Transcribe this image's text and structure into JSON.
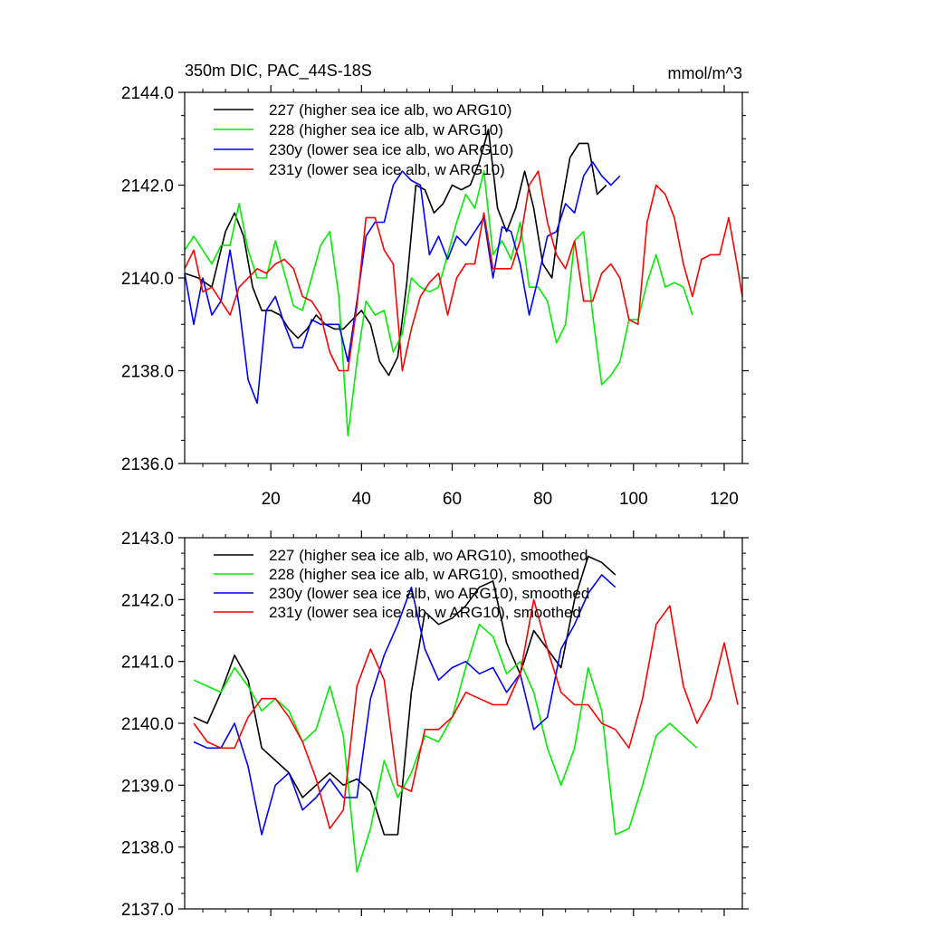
{
  "chart_data": [
    {
      "type": "line",
      "title": "350m DIC, PAC_44S-18S",
      "units": "mmol/m^3",
      "xlim": [
        1,
        124
      ],
      "ylim": [
        2136.0,
        2144.0
      ],
      "xticks": [
        20,
        40,
        60,
        80,
        100,
        120
      ],
      "xtick_labels": [
        "20",
        "40",
        "60",
        "80",
        "100",
        "120"
      ],
      "yticks": [
        2136,
        2138,
        2140,
        2142,
        2144
      ],
      "ytick_labels": [
        "2136.0",
        "2138.0",
        "2140.0",
        "2142.0",
        "2144.0"
      ],
      "legend_position": "top-left",
      "series": [
        {
          "name": "227 (higher sea ice alb, wo ARG10)",
          "color": "#000000",
          "x": [
            1,
            4,
            7,
            10,
            12,
            14,
            16,
            18,
            20,
            22,
            24,
            26,
            28,
            30,
            32,
            34,
            36,
            38,
            40,
            42,
            44,
            46,
            48,
            50,
            52,
            54,
            56,
            58,
            60,
            62,
            64,
            66,
            68,
            70,
            72,
            74,
            76,
            78,
            80,
            82,
            84,
            86,
            88,
            90,
            92,
            94
          ],
          "values": [
            2140.1,
            2140.0,
            2139.8,
            2141.0,
            2141.4,
            2140.9,
            2139.8,
            2139.3,
            2139.3,
            2139.2,
            2138.9,
            2138.7,
            2138.9,
            2139.2,
            2139.0,
            2138.9,
            2138.9,
            2139.1,
            2139.3,
            2139.0,
            2138.2,
            2137.9,
            2138.3,
            2139.9,
            2142.0,
            2141.9,
            2141.4,
            2141.6,
            2142.0,
            2141.9,
            2142.0,
            2142.5,
            2143.2,
            2141.5,
            2141.0,
            2141.5,
            2142.3,
            2141.5,
            2140.3,
            2140.0,
            2141.5,
            2142.6,
            2142.9,
            2142.9,
            2141.8,
            2142.0
          ]
        },
        {
          "name": "228 (higher sea ice alb, w ARG10)",
          "color": "#00ee00",
          "x": [
            1,
            3,
            5,
            7,
            9,
            11,
            13,
            15,
            17,
            19,
            21,
            23,
            25,
            27,
            29,
            31,
            33,
            35,
            37,
            39,
            41,
            43,
            45,
            47,
            49,
            51,
            53,
            55,
            57,
            59,
            61,
            63,
            65,
            67,
            69,
            71,
            73,
            75,
            77,
            79,
            81,
            83,
            85,
            87,
            89,
            91,
            93,
            95,
            97,
            99,
            101,
            103,
            105,
            107,
            109,
            111,
            113
          ],
          "values": [
            2140.6,
            2140.9,
            2140.6,
            2140.3,
            2140.7,
            2140.7,
            2141.6,
            2140.6,
            2140.0,
            2140.0,
            2140.8,
            2140.1,
            2139.4,
            2139.3,
            2140.0,
            2140.7,
            2141.0,
            2139.6,
            2136.6,
            2138.2,
            2139.5,
            2139.2,
            2139.3,
            2138.4,
            2138.8,
            2140.0,
            2139.8,
            2139.7,
            2139.8,
            2140.5,
            2141.2,
            2141.8,
            2141.5,
            2142.3,
            2140.5,
            2140.8,
            2140.4,
            2141.2,
            2139.8,
            2139.8,
            2139.5,
            2138.6,
            2139.0,
            2140.8,
            2141.0,
            2139.2,
            2137.7,
            2137.9,
            2138.2,
            2139.1,
            2139.1,
            2139.9,
            2140.5,
            2139.8,
            2139.9,
            2139.8,
            2139.2
          ]
        },
        {
          "name": "230y (lower sea ice alb, wo ARG10)",
          "color": "#0000ff",
          "x": [
            1,
            3,
            5,
            7,
            9,
            11,
            13,
            15,
            17,
            19,
            21,
            23,
            25,
            27,
            29,
            31,
            33,
            35,
            37,
            39,
            41,
            43,
            45,
            47,
            49,
            51,
            53,
            55,
            57,
            59,
            61,
            63,
            65,
            67,
            69,
            71,
            73,
            75,
            77,
            79,
            81,
            83,
            85,
            87,
            89,
            91,
            93,
            95,
            97
          ],
          "values": [
            2140.1,
            2139.0,
            2140.0,
            2139.2,
            2139.5,
            2140.6,
            2139.4,
            2137.8,
            2137.3,
            2139.3,
            2139.6,
            2139.0,
            2138.5,
            2138.5,
            2139.1,
            2139.0,
            2139.0,
            2139.0,
            2138.2,
            2139.5,
            2140.9,
            2141.2,
            2141.2,
            2142.0,
            2142.3,
            2142.1,
            2142.0,
            2140.5,
            2140.9,
            2140.4,
            2140.9,
            2140.7,
            2141.0,
            2141.3,
            2140.0,
            2141.1,
            2141.0,
            2140.3,
            2139.2,
            2140.0,
            2140.9,
            2141.0,
            2141.6,
            2141.4,
            2142.2,
            2142.5,
            2142.2,
            2142.0,
            2142.2
          ]
        },
        {
          "name": "231y (lower sea ice alb, w ARG10)",
          "color": "#ff0000",
          "x": [
            1,
            3,
            5,
            7,
            9,
            11,
            13,
            15,
            17,
            19,
            21,
            23,
            25,
            27,
            29,
            31,
            33,
            35,
            37,
            39,
            41,
            43,
            45,
            47,
            49,
            51,
            53,
            55,
            57,
            59,
            61,
            63,
            65,
            67,
            69,
            71,
            73,
            75,
            77,
            79,
            81,
            83,
            85,
            87,
            89,
            91,
            93,
            95,
            97,
            99,
            101,
            103,
            105,
            107,
            109,
            111,
            113,
            115,
            117,
            119,
            121,
            123,
            124
          ],
          "values": [
            2140.2,
            2140.6,
            2139.7,
            2139.8,
            2139.5,
            2139.2,
            2139.8,
            2140.0,
            2140.2,
            2140.1,
            2140.3,
            2140.4,
            2140.2,
            2139.6,
            2139.5,
            2139.2,
            2138.4,
            2138.0,
            2138.0,
            2139.4,
            2141.3,
            2141.3,
            2140.6,
            2140.3,
            2138.0,
            2138.9,
            2139.6,
            2139.9,
            2140.1,
            2139.2,
            2140.0,
            2140.3,
            2140.3,
            2141.4,
            2140.2,
            2140.2,
            2140.2,
            2140.8,
            2142.0,
            2142.3,
            2141.2,
            2140.5,
            2140.2,
            2140.8,
            2139.5,
            2139.5,
            2140.1,
            2140.3,
            2140.0,
            2139.1,
            2139.0,
            2141.2,
            2142.0,
            2141.8,
            2141.3,
            2140.3,
            2139.6,
            2140.4,
            2140.5,
            2140.5,
            2141.3,
            2140.2,
            2139.6
          ]
        }
      ]
    },
    {
      "type": "line",
      "xlim": [
        1,
        124
      ],
      "ylim": [
        2137.0,
        2143.0
      ],
      "xticks": [
        20,
        40,
        60,
        80,
        100,
        120
      ],
      "xtick_labels": [],
      "yticks": [
        2137,
        2138,
        2139,
        2140,
        2141,
        2142,
        2143
      ],
      "ytick_labels": [
        "2137.0",
        "2138.0",
        "2139.0",
        "2140.0",
        "2141.0",
        "2142.0",
        "2143.0"
      ],
      "legend_position": "top-left",
      "series": [
        {
          "name": "227 (higher sea ice alb, wo ARG10), smoothed",
          "color": "#000000",
          "x": [
            3,
            6,
            9,
            12,
            15,
            18,
            21,
            24,
            27,
            30,
            33,
            36,
            39,
            42,
            45,
            48,
            51,
            54,
            57,
            60,
            63,
            66,
            69,
            72,
            75,
            78,
            81,
            84,
            87,
            90,
            93,
            96
          ],
          "values": [
            2140.1,
            2140.0,
            2140.5,
            2141.1,
            2140.7,
            2139.6,
            2139.4,
            2139.2,
            2138.8,
            2139.0,
            2139.2,
            2139.0,
            2139.1,
            2138.9,
            2138.2,
            2138.2,
            2140.5,
            2141.8,
            2141.6,
            2141.7,
            2141.9,
            2142.2,
            2142.3,
            2141.3,
            2140.8,
            2141.5,
            2141.2,
            2140.9,
            2142.0,
            2142.7,
            2142.6,
            2142.4
          ]
        },
        {
          "name": "228 (higher sea ice alb, w ARG10), smoothed",
          "color": "#00ee00",
          "x": [
            3,
            6,
            9,
            12,
            15,
            18,
            21,
            24,
            27,
            30,
            33,
            36,
            39,
            42,
            45,
            48,
            51,
            54,
            57,
            60,
            63,
            66,
            69,
            72,
            75,
            78,
            81,
            84,
            87,
            90,
            93,
            96,
            99,
            102,
            105,
            108,
            111,
            114
          ],
          "values": [
            2140.7,
            2140.6,
            2140.5,
            2140.9,
            2140.6,
            2140.2,
            2140.4,
            2140.2,
            2139.7,
            2139.9,
            2140.6,
            2139.8,
            2137.6,
            2138.3,
            2139.4,
            2138.8,
            2139.2,
            2139.8,
            2139.7,
            2140.1,
            2140.9,
            2141.6,
            2141.4,
            2140.8,
            2141.0,
            2140.5,
            2139.6,
            2139.0,
            2139.6,
            2140.9,
            2140.2,
            2138.2,
            2138.3,
            2139.0,
            2139.8,
            2140.0,
            2139.8,
            2139.6
          ]
        },
        {
          "name": "230y (lower sea ice alb, wo ARG10), smoothed",
          "color": "#0000ff",
          "x": [
            3,
            6,
            9,
            12,
            15,
            18,
            21,
            24,
            27,
            30,
            33,
            36,
            39,
            42,
            45,
            48,
            51,
            54,
            57,
            60,
            63,
            66,
            69,
            72,
            75,
            78,
            81,
            84,
            87,
            90,
            93,
            96
          ],
          "values": [
            2139.7,
            2139.6,
            2139.6,
            2140.0,
            2139.3,
            2138.2,
            2139.0,
            2139.2,
            2138.6,
            2138.8,
            2139.1,
            2138.8,
            2138.8,
            2140.4,
            2141.1,
            2141.6,
            2142.2,
            2141.2,
            2140.7,
            2140.9,
            2141.0,
            2140.8,
            2140.9,
            2140.5,
            2140.8,
            2139.9,
            2140.1,
            2141.2,
            2141.6,
            2142.1,
            2142.4,
            2142.2
          ]
        },
        {
          "name": "231y (lower sea ice alb, w ARG10), smoothed",
          "color": "#ff0000",
          "x": [
            3,
            6,
            9,
            12,
            15,
            18,
            21,
            24,
            27,
            30,
            33,
            36,
            39,
            42,
            45,
            48,
            51,
            54,
            57,
            60,
            63,
            66,
            69,
            72,
            75,
            78,
            81,
            84,
            87,
            90,
            93,
            96,
            99,
            102,
            105,
            108,
            111,
            114,
            117,
            120,
            123
          ],
          "values": [
            2140.0,
            2139.7,
            2139.6,
            2139.6,
            2140.1,
            2140.4,
            2140.4,
            2140.1,
            2139.7,
            2139.1,
            2138.3,
            2138.6,
            2140.6,
            2141.2,
            2140.7,
            2139.0,
            2138.9,
            2139.9,
            2139.9,
            2140.1,
            2140.5,
            2140.4,
            2140.3,
            2140.3,
            2140.8,
            2142.0,
            2141.2,
            2140.5,
            2140.3,
            2140.3,
            2140.0,
            2139.9,
            2139.6,
            2140.4,
            2141.6,
            2141.9,
            2140.6,
            2140.0,
            2140.4,
            2141.3,
            2140.3
          ]
        }
      ]
    }
  ]
}
